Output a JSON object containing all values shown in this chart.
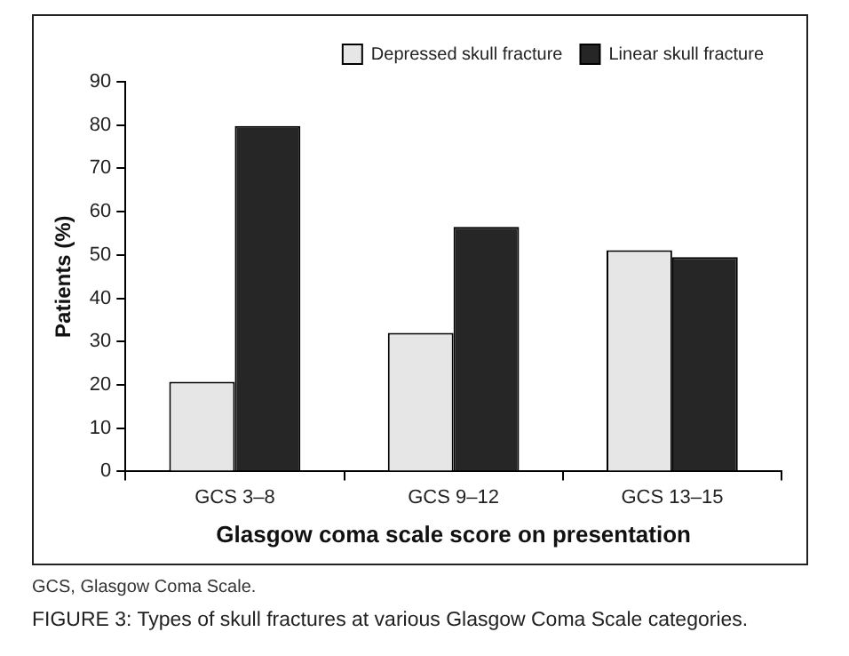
{
  "chart_data": {
    "type": "bar",
    "title": "FIGURE 3: Types of skull fractures at various Glasgow Coma Scale categories.",
    "xlabel": "Glasgow coma scale score on presentation",
    "ylabel": "Patients (%)",
    "annotations": [
      "GCS, Glasgow Coma Scale."
    ],
    "categories": [
      "GCS 3–8",
      "GCS 9–12",
      "GCS 13–15"
    ],
    "series": [
      {
        "name": "Depressed skull fracture",
        "color": "#e6e6e6",
        "values": [
          20.7,
          32.0,
          51.1
        ]
      },
      {
        "name": "Linear skull fracture",
        "color": "#262626",
        "values": [
          79.8,
          56.5,
          49.5
        ]
      }
    ],
    "ylim": [
      0,
      90
    ],
    "yticks": [
      0,
      10,
      20,
      30,
      40,
      50,
      60,
      70,
      80,
      90
    ],
    "grid": false,
    "legend": "top right"
  }
}
